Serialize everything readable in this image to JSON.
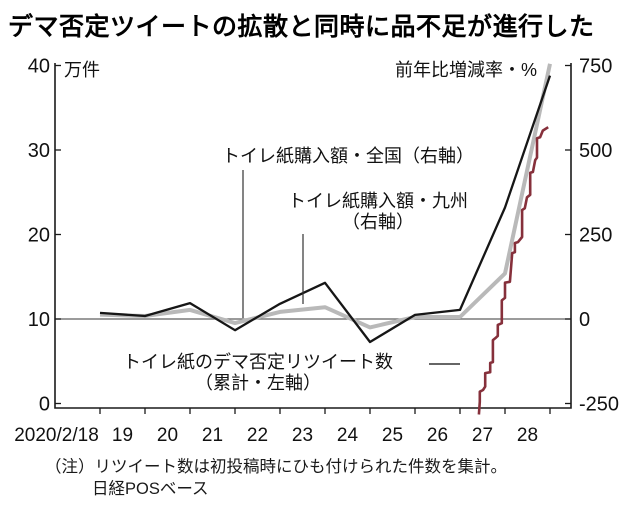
{
  "title": "デマ否定ツイートの拡散と同時に品不足が進行した",
  "chart_data": {
    "type": "line",
    "x_labels": [
      "2020/2/18",
      "19",
      "20",
      "21",
      "22",
      "23",
      "24",
      "25",
      "26",
      "27",
      "28"
    ],
    "left_axis": {
      "unit_label": "万件",
      "ticks": [
        0,
        10,
        20,
        30,
        40
      ],
      "range": [
        0,
        40
      ]
    },
    "right_axis": {
      "unit_label": "前年比増減率・%",
      "ticks": [
        -250,
        0,
        250,
        500,
        750
      ],
      "range": [
        -250,
        750
      ]
    },
    "grid": "zero-line-only",
    "zero_line_right_value": 0,
    "legend_position": "inline-annotations",
    "series": [
      {
        "id": "kyushu-purchase",
        "name": "トイレ紙購入額・九州（右軸）",
        "axis": "right",
        "color": "#b9b9b9",
        "width": 4,
        "values": [
          13,
          9,
          27,
          -12,
          21,
          35,
          -25,
          6,
          6,
          135,
          755
        ]
      },
      {
        "id": "national-purchase",
        "name": "トイレ紙購入額・全国（右軸）",
        "axis": "right",
        "color": "#161616",
        "width": 2.3,
        "values": [
          18,
          9,
          47,
          -33,
          45,
          107,
          -68,
          12,
          27,
          330,
          720
        ]
      },
      {
        "id": "retweet-count",
        "name": "トイレ紙のデマ否定リツイート数（累計・左軸）",
        "axis": "left",
        "color": "#86303b",
        "width": 2.6,
        "points": [
          [
            26.42,
            -1.3
          ],
          [
            26.44,
            0.2
          ],
          [
            26.44,
            1.4
          ],
          [
            26.51,
            1.6
          ],
          [
            26.56,
            2.0
          ],
          [
            26.56,
            3.6
          ],
          [
            26.67,
            3.7
          ],
          [
            26.67,
            4.8
          ],
          [
            26.73,
            4.9
          ],
          [
            26.73,
            7.5
          ],
          [
            26.8,
            7.8
          ],
          [
            26.84,
            8.0
          ],
          [
            26.84,
            9.3
          ],
          [
            26.93,
            9.5
          ],
          [
            26.93,
            12.2
          ],
          [
            27.0,
            12.5
          ],
          [
            27.0,
            14.3
          ],
          [
            27.11,
            14.4
          ],
          [
            27.16,
            17.8
          ],
          [
            27.22,
            17.9
          ],
          [
            27.22,
            19.0
          ],
          [
            27.29,
            19.1
          ],
          [
            27.38,
            19.7
          ],
          [
            27.38,
            22.9
          ],
          [
            27.44,
            23.1
          ],
          [
            27.49,
            24.4
          ],
          [
            27.56,
            24.7
          ],
          [
            27.56,
            27.3
          ],
          [
            27.62,
            27.4
          ],
          [
            27.67,
            28.8
          ],
          [
            27.71,
            29.1
          ],
          [
            27.71,
            31.4
          ],
          [
            27.78,
            31.5
          ],
          [
            27.84,
            32.3
          ],
          [
            27.96,
            32.7
          ]
        ]
      }
    ]
  },
  "annotations": {
    "national": "トイレ紙購入額・全国（右軸）",
    "kyushu_line1": "トイレ紙購入額・九州",
    "kyushu_line2": "（右軸）",
    "retweet_line1": "トイレ紙のデマ否定リツイート数",
    "retweet_line2": "（累計・左軸）"
  },
  "note": {
    "line1": "（注）リツイート数は初投稿時にひも付けられた件数を集計。",
    "line2": "日経POSベース"
  }
}
